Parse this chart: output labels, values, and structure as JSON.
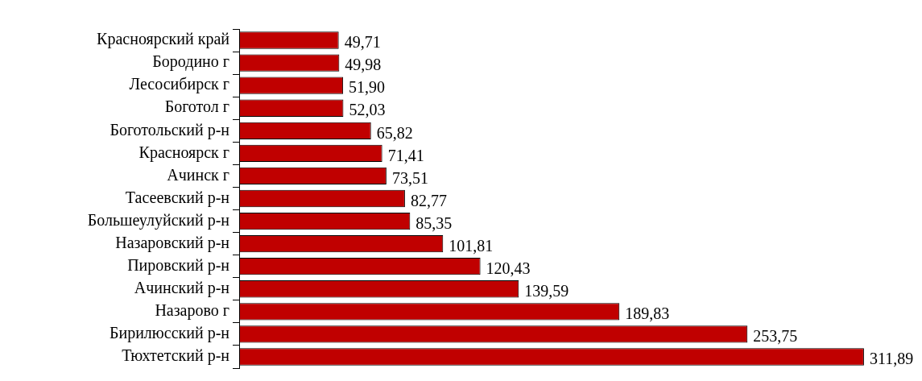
{
  "chart_data": {
    "type": "bar",
    "orientation": "horizontal",
    "color": "#c00000",
    "categories": [
      "Красноярский край",
      "Бородино г",
      "Лесосибирск г",
      "Боготол г",
      "Боготольский р-н",
      "Красноярск г",
      "Ачинск г",
      "Тасеевский р-н",
      "Большеулуйский р-н",
      "Назаровский р-н",
      "Пировский р-н",
      "Ачинский р-н",
      "Назарово г",
      "Бирилюсский р-н",
      "Тюхтетский р-н"
    ],
    "values": [
      49.71,
      49.98,
      51.9,
      52.03,
      65.82,
      71.41,
      73.51,
      82.77,
      85.35,
      101.81,
      120.43,
      139.59,
      189.83,
      253.75,
      311.89
    ],
    "value_labels": [
      "49,71",
      "49,98",
      "51,90",
      "52,03",
      "65,82",
      "71,41",
      "73,51",
      "82,77",
      "85,35",
      "101,81",
      "120,43",
      "139,59",
      "189,83",
      "253,75",
      "311,89"
    ]
  }
}
